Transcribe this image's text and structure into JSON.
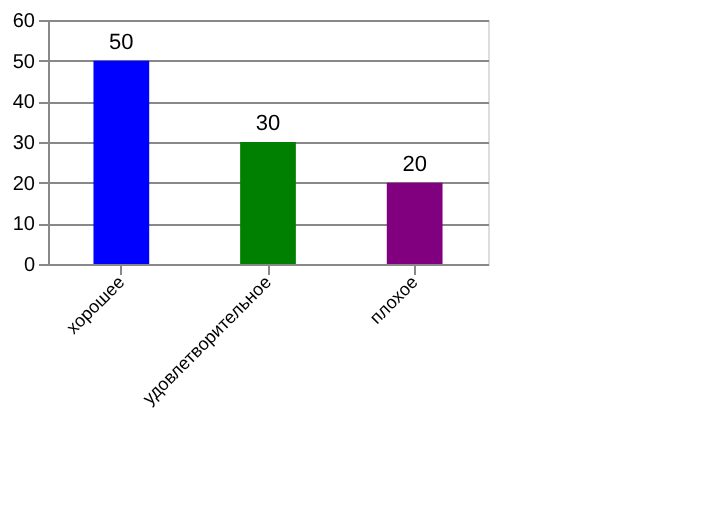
{
  "chart_data": {
    "type": "bar",
    "categories": [
      "хорошее",
      "удовлетворительное",
      "плохое"
    ],
    "values": [
      50,
      30,
      20
    ],
    "colors": [
      "#0000ff",
      "#008000",
      "#800080"
    ],
    "ylim": [
      0,
      60
    ],
    "yticks": [
      0,
      10,
      20,
      30,
      40,
      50,
      60
    ],
    "grid": "y",
    "data_labels": true
  }
}
